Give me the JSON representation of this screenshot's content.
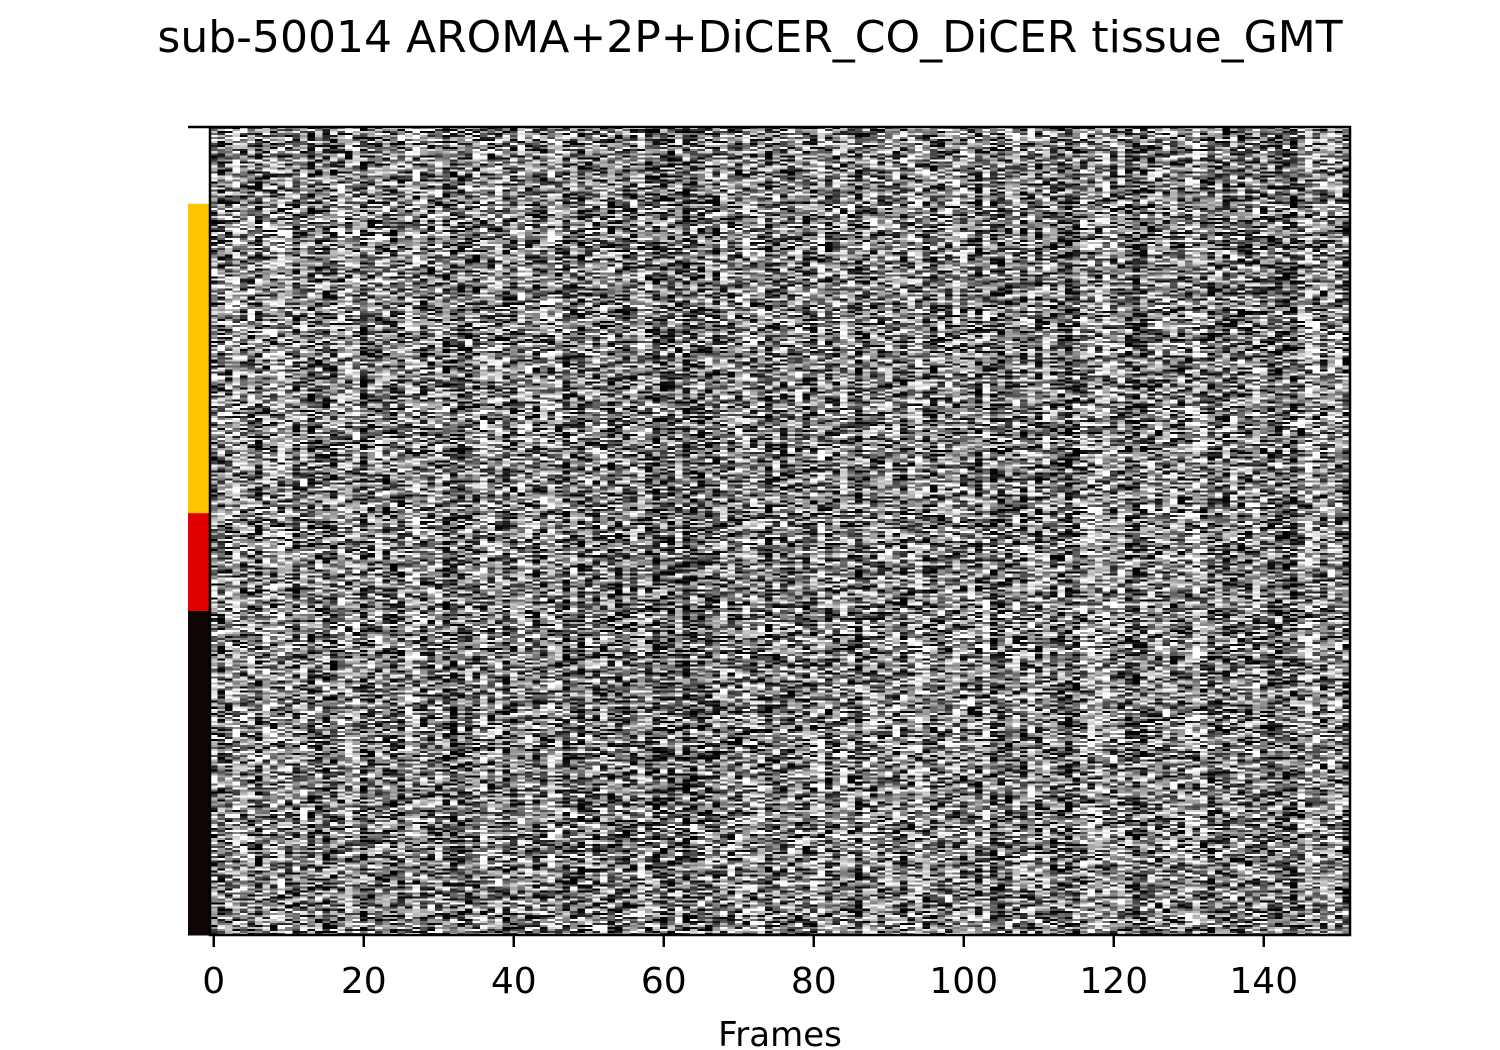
{
  "chart_data": {
    "type": "heatmap",
    "title": "sub-50014 AROMA+2P+DiCER_CO_DiCER tissue_GMT",
    "xlabel": "Frames",
    "ylabel": "",
    "colormap": "gray",
    "n_frames": 152,
    "xlim": [
      -0.5,
      151.5
    ],
    "x_ticks": [
      0,
      20,
      40,
      60,
      80,
      100,
      120,
      140
    ],
    "x_tick_labels": [
      "0",
      "20",
      "40",
      "60",
      "80",
      "100",
      "120",
      "140"
    ],
    "grid": false,
    "legend": "none",
    "tissue_bands": [
      {
        "start_fraction": 0.0,
        "end_fraction": 0.095,
        "color": "#ffffff"
      },
      {
        "start_fraction": 0.095,
        "end_fraction": 0.478,
        "color": "#ffc400"
      },
      {
        "start_fraction": 0.478,
        "end_fraction": 0.599,
        "color": "#e00000"
      },
      {
        "start_fraction": 0.599,
        "end_fraction": 1.0,
        "color": "#0f0505"
      }
    ]
  }
}
